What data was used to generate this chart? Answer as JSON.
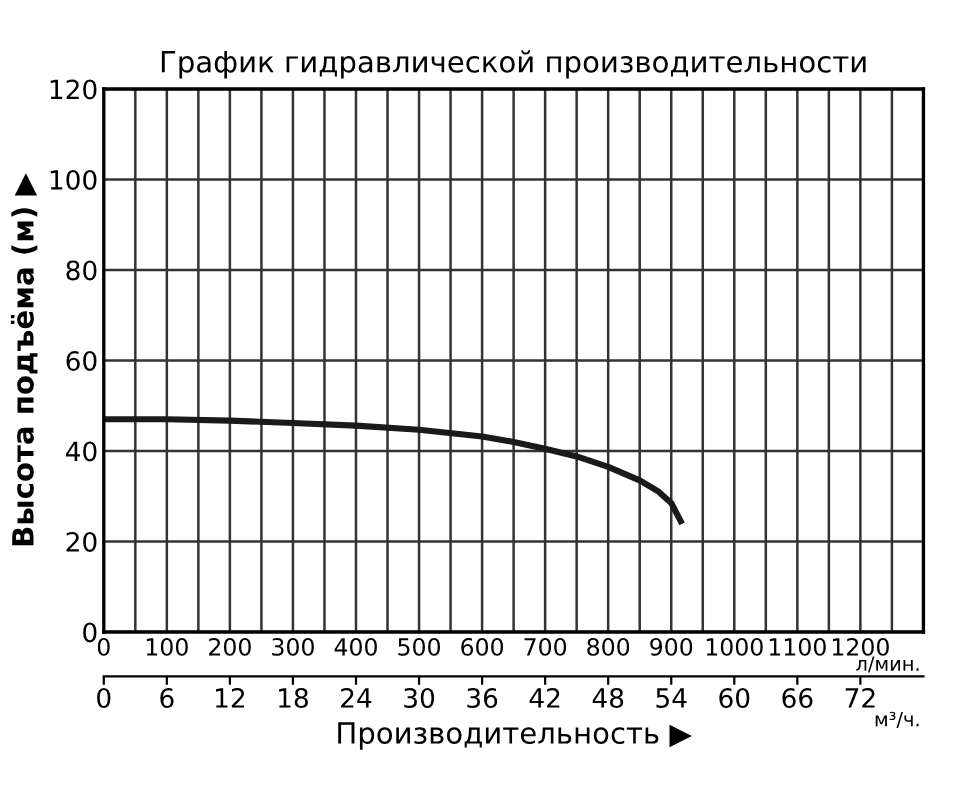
{
  "chart_data": {
    "type": "line",
    "title": "График гидравлической производительности",
    "xlabel": "Производительность ▶",
    "ylabel": "Высота подъёма (м) ▶",
    "x": [
      0,
      100,
      200,
      300,
      400,
      500,
      600,
      650,
      700,
      750,
      800,
      850,
      880,
      900,
      915
    ],
    "series": [
      {
        "color": "#1a1a1a",
        "values": [
          47,
          47,
          46.7,
          46.2,
          45.6,
          44.7,
          43.2,
          42,
          40.5,
          38.8,
          36.5,
          33.5,
          31,
          28.5,
          24.5
        ]
      }
    ],
    "xlim": [
      0,
      1300
    ],
    "xticks": [
      0,
      100,
      200,
      300,
      400,
      500,
      600,
      700,
      800,
      900,
      1000,
      1100,
      1200
    ],
    "x2lim": [
      0,
      78
    ],
    "x2ticks": [
      0,
      6,
      12,
      18,
      24,
      30,
      36,
      42,
      48,
      54,
      60,
      66,
      72
    ],
    "ylim": [
      0,
      120
    ],
    "yticks": [
      0,
      20,
      40,
      60,
      80,
      100,
      120
    ],
    "annotations": [
      "л/мин.",
      "м³/ч."
    ],
    "grid": true,
    "legend": false,
    "marker": "none",
    "line_style": "solid"
  }
}
